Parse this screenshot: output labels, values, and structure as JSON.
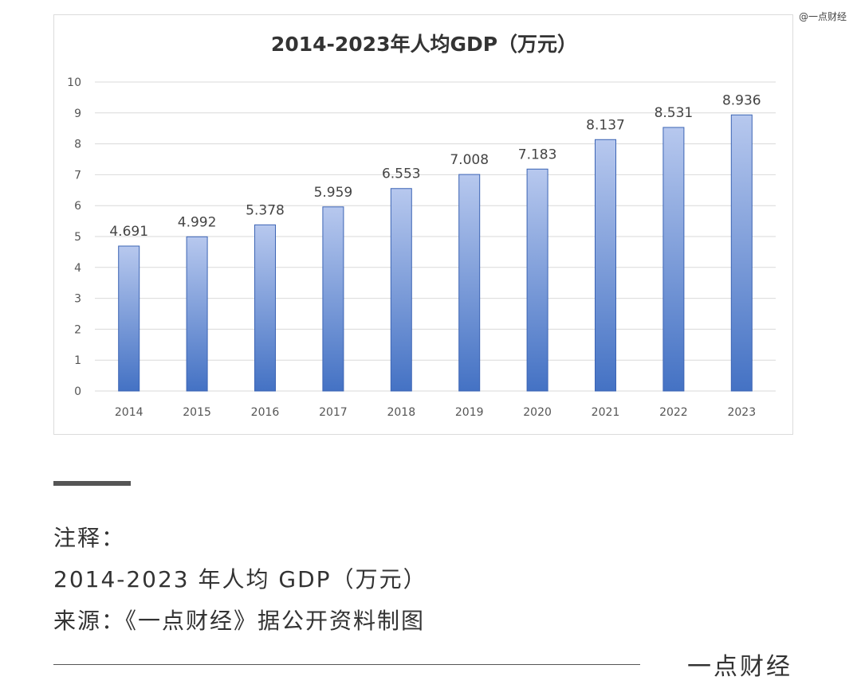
{
  "watermark": "@一点财经",
  "notes": {
    "line1": "注释：",
    "line2": "2014-2023 年人均 GDP（万元）",
    "line3": "来源：《一点财经》据公开资料制图"
  },
  "brand": "一点财经",
  "colors": {
    "bar_top": "#b7c8ee",
    "bar_bottom": "#4472c4",
    "bar_edge": "#3c64b4",
    "grid": "#d9d9d9"
  },
  "chart_data": {
    "type": "bar",
    "title": "2014-2023年人均GDP（万元）",
    "xlabel": "",
    "ylabel": "",
    "categories": [
      "2014",
      "2015",
      "2016",
      "2017",
      "2018",
      "2019",
      "2020",
      "2021",
      "2022",
      "2023"
    ],
    "values": [
      4.691,
      4.992,
      5.378,
      5.959,
      6.553,
      7.008,
      7.183,
      8.137,
      8.531,
      8.936
    ],
    "data_labels": [
      "4.691",
      "4.992",
      "5.378",
      "5.959",
      "6.553",
      "7.008",
      "7.183",
      "8.137",
      "8.531",
      "8.936"
    ],
    "y_ticks": [
      "0",
      "1",
      "2",
      "3",
      "4",
      "5",
      "6",
      "7",
      "8",
      "9",
      "10"
    ],
    "ylim": [
      0,
      10
    ],
    "grid": true,
    "legend": "none"
  }
}
